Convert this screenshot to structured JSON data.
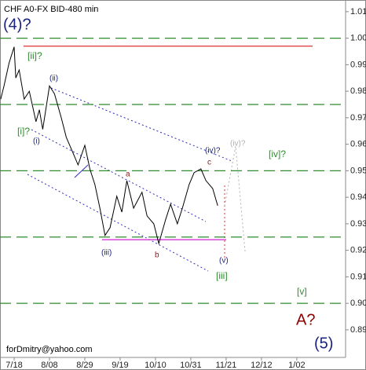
{
  "chart_data": {
    "type": "line",
    "title": "CHF A0-FX BID-480 min",
    "x": [
      -8,
      -6,
      -3,
      0,
      1,
      3,
      6,
      9,
      13,
      15,
      17,
      21,
      24,
      28,
      31,
      35,
      38,
      42,
      45,
      48,
      51,
      54,
      57,
      61,
      64,
      67,
      71,
      76,
      79,
      83,
      86,
      90,
      93,
      97,
      100,
      104,
      107,
      111,
      114,
      118,
      121
    ],
    "series": [
      {
        "color": "#000000",
        "values": [
          0.977,
          0.982,
          0.9907,
          0.9967,
          0.985,
          0.988,
          0.977,
          0.98,
          0.9685,
          0.973,
          0.9656,
          0.982,
          0.979,
          0.97,
          0.9626,
          0.9567,
          0.9522,
          0.9596,
          0.9507,
          0.9448,
          0.9359,
          0.9256,
          0.9285,
          0.9404,
          0.9344,
          0.9463,
          0.9359,
          0.9419,
          0.933,
          0.93,
          0.9226,
          0.9315,
          0.9374,
          0.93,
          0.9359,
          0.9448,
          0.9493,
          0.9507,
          0.9463,
          0.9433,
          0.9368
        ]
      }
    ],
    "xlim": [
      -8.4,
      197
    ],
    "xticks": [
      {
        "value": 0,
        "label": "7/18"
      },
      {
        "value": 21,
        "label": "8/08"
      },
      {
        "value": 42,
        "label": "8/29"
      },
      {
        "value": 63,
        "label": "9/19"
      },
      {
        "value": 84,
        "label": "10/10"
      },
      {
        "value": 105,
        "label": "10/31"
      },
      {
        "value": 126,
        "label": "11/21"
      },
      {
        "value": 147,
        "label": "12/12"
      },
      {
        "value": 168,
        "label": "1/02"
      }
    ],
    "ylim": [
      0.8796,
      1.0144
    ],
    "yticks": [
      1.01,
      {
        "value": 1.0,
        "label": "1.00"
      },
      {
        "value": 0.99,
        "label": "0.990"
      },
      {
        "value": 0.98,
        "label": "0.980"
      },
      {
        "value": 0.97,
        "label": "0.970"
      },
      {
        "value": 0.96,
        "label": "0.960"
      },
      {
        "value": 0.95,
        "label": "0.950"
      },
      {
        "value": 0.94,
        "label": "0.940"
      },
      {
        "value": 0.93,
        "label": "0.930"
      },
      {
        "value": 0.92,
        "label": "0.920"
      },
      {
        "value": 0.91,
        "label": "0.910"
      },
      {
        "value": 0.9,
        "label": "0.900"
      },
      {
        "value": 0.89,
        "label": "0.890"
      }
    ],
    "levels": [
      {
        "value": 1.0,
        "color": "#2e8b2e",
        "dash": true
      },
      {
        "value": 0.975,
        "color": "#2e8b2e",
        "dash": true
      },
      {
        "value": 0.95,
        "color": "#2e8b2e",
        "dash": true
      },
      {
        "value": 0.925,
        "color": "#2e8b2e",
        "dash": true
      },
      {
        "value": 0.9,
        "color": "#2e8b2e",
        "dash": true
      },
      {
        "value": 0.997,
        "color": "#e03030",
        "dash": false
      },
      {
        "value": 0.924,
        "color": "#d020d0",
        "dash": false
      }
    ],
    "annotations": [
      {
        "text": "(4)?",
        "color": "#1a237e"
      },
      {
        "text": "[ii]?",
        "color": "#2e8b2e"
      },
      {
        "text": "(ii)",
        "color": "#1a237e"
      },
      {
        "text": "[i]?",
        "color": "#2e8b2e"
      },
      {
        "text": "(i)",
        "color": "#1a237e"
      },
      {
        "text": "a",
        "color": "#8b1a1a"
      },
      {
        "text": "(iii)",
        "color": "#1a237e"
      },
      {
        "text": "b",
        "color": "#8b1a1a"
      },
      {
        "text": "(iv)?",
        "color": "#1a237e"
      },
      {
        "text": "c",
        "color": "#8b1a1a"
      },
      {
        "text": "(iv)?",
        "color": "#b0b0b0"
      },
      {
        "text": "[iv]?",
        "color": "#2e8b2e"
      },
      {
        "text": "(v)",
        "color": "#1a237e"
      },
      {
        "text": "[iii]",
        "color": "#2e8b2e"
      },
      {
        "text": "[v]",
        "color": "#2e8b2e"
      },
      {
        "text": "A?",
        "color": "#8b0000"
      },
      {
        "text": "forDmitry@yahoo.com",
        "color": "#000000"
      },
      {
        "text": "(5)",
        "color": "#1a237e"
      }
    ]
  }
}
